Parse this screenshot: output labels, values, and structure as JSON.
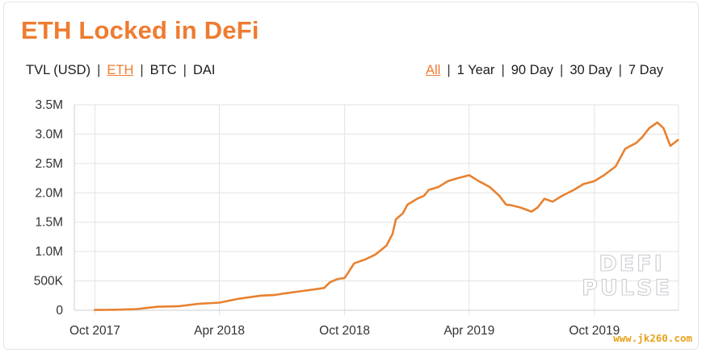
{
  "header": {
    "title": "ETH Locked in DeFi"
  },
  "denomination_toggles": [
    {
      "label": "TVL (USD)",
      "active": false
    },
    {
      "label": "ETH",
      "active": true
    },
    {
      "label": "BTC",
      "active": false
    },
    {
      "label": "DAI",
      "active": false
    }
  ],
  "range_toggles": [
    {
      "label": "All",
      "active": true
    },
    {
      "label": "1 Year",
      "active": false
    },
    {
      "label": "90 Day",
      "active": false
    },
    {
      "label": "30 Day",
      "active": false
    },
    {
      "label": "7 Day",
      "active": false
    }
  ],
  "colors": {
    "accent": "#ef7b30",
    "line": "#e8812f",
    "grid": "#e3e3e3"
  },
  "watermark": {
    "line1": "DEFI",
    "line2": "PULSE"
  },
  "site_url": "www.jk260.com",
  "chart_data": {
    "type": "line",
    "title": "ETH Locked in DeFi",
    "xlabel": "",
    "ylabel": "",
    "x_axis": "date",
    "xlim": [
      "2017-09-01",
      "2020-02-01"
    ],
    "ylim": [
      0,
      3500000
    ],
    "grid": true,
    "legend": "none",
    "y_ticks": [
      {
        "value": 0,
        "label": "0"
      },
      {
        "value": 500000,
        "label": "500K"
      },
      {
        "value": 1000000,
        "label": "1.0M"
      },
      {
        "value": 1500000,
        "label": "1.5M"
      },
      {
        "value": 2000000,
        "label": "2.0M"
      },
      {
        "value": 2500000,
        "label": "2.5M"
      },
      {
        "value": 3000000,
        "label": "3.0M"
      },
      {
        "value": 3500000,
        "label": "3.5M"
      }
    ],
    "x_ticks": [
      {
        "value": "2017-10-01",
        "label": "Oct 2017"
      },
      {
        "value": "2018-04-01",
        "label": "Apr 2018"
      },
      {
        "value": "2018-10-01",
        "label": "Oct 2018"
      },
      {
        "value": "2019-04-01",
        "label": "Apr 2019"
      },
      {
        "value": "2019-10-01",
        "label": "Oct 2019"
      }
    ],
    "series": [
      {
        "x": [
          "2017-10-01",
          "2017-11-01",
          "2017-12-01",
          "2018-01-01",
          "2018-02-01",
          "2018-03-01",
          "2018-04-01",
          "2018-05-01",
          "2018-06-01",
          "2018-06-20",
          "2018-07-01",
          "2018-08-01",
          "2018-08-20",
          "2018-09-01",
          "2018-09-10",
          "2018-09-20",
          "2018-10-01",
          "2018-10-15",
          "2018-11-01",
          "2018-11-15",
          "2018-12-01",
          "2018-12-10",
          "2018-12-15",
          "2018-12-25",
          "2019-01-01",
          "2019-01-15",
          "2019-01-25",
          "2019-02-01",
          "2019-02-15",
          "2019-03-01",
          "2019-03-15",
          "2019-04-01",
          "2019-04-15",
          "2019-05-01",
          "2019-05-15",
          "2019-05-25",
          "2019-06-01",
          "2019-06-15",
          "2019-07-01",
          "2019-07-10",
          "2019-07-20",
          "2019-08-01",
          "2019-08-15",
          "2019-09-01",
          "2019-09-15",
          "2019-10-01",
          "2019-10-15",
          "2019-11-01",
          "2019-11-15",
          "2019-12-01",
          "2019-12-10",
          "2019-12-20",
          "2020-01-01",
          "2020-01-10",
          "2020-01-20",
          "2020-01-31"
        ],
        "values": [
          5000,
          10000,
          20000,
          60000,
          70000,
          110000,
          130000,
          200000,
          250000,
          260000,
          280000,
          330000,
          360000,
          380000,
          480000,
          530000,
          550000,
          800000,
          870000,
          950000,
          1100000,
          1300000,
          1550000,
          1650000,
          1800000,
          1900000,
          1950000,
          2050000,
          2100000,
          2200000,
          2250000,
          2300000,
          2200000,
          2100000,
          1950000,
          1800000,
          1790000,
          1750000,
          1680000,
          1750000,
          1900000,
          1850000,
          1950000,
          2050000,
          2150000,
          2200000,
          2300000,
          2450000,
          2750000,
          2850000,
          2950000,
          3100000,
          3200000,
          3100000,
          2800000,
          2900000
        ]
      }
    ]
  }
}
